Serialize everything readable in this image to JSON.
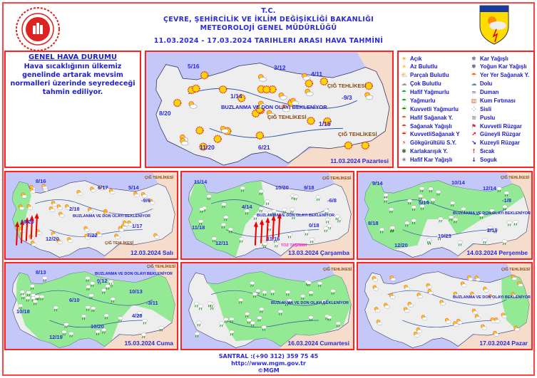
{
  "header": {
    "line1": "T.C.",
    "line2": "ÇEVRE, ŞEHİRCİLİK VE İKLİM DEĞİŞİKLİĞİ BAKANLIĞI",
    "line3": "METEOROLOJİ  GENEL  MÜDÜRLÜĞÜ",
    "date_range": "11.03.2024  -  17.03.2024    TARIHLERI  ARASI  HAVA  TAHMİNİ",
    "right_logo_text": "METEOROLOJİ"
  },
  "genel": {
    "title": "GENEL HAVA DURUMU",
    "text": "Hava sıcaklığının ülkemiz genelinde artarak mevsim normalleri üzerinde seyredeceği tahmin ediliyor."
  },
  "legend": [
    {
      "label": "Açık",
      "icon": "sun-icon"
    },
    {
      "label": "Kar Yağışlı",
      "icon": "snow-icon"
    },
    {
      "label": "Az Bulutlu",
      "icon": "few-clouds-icon"
    },
    {
      "label": "Yoğun Kar Yağışlı",
      "icon": "heavy-snow-icon"
    },
    {
      "label": "Parçalı Bulutlu",
      "icon": "partly-cloudy-icon"
    },
    {
      "label": "Yer Yer Sağanak Y.",
      "icon": "scattered-showers-icon"
    },
    {
      "label": "Çok Bulutlu",
      "icon": "cloudy-icon"
    },
    {
      "label": "Dolu",
      "icon": "hail-icon"
    },
    {
      "label": "Hafif Yağmurlu",
      "icon": "light-rain-icon"
    },
    {
      "label": "Duman",
      "icon": "smoke-icon"
    },
    {
      "label": "Yağmurlu",
      "icon": "rain-icon"
    },
    {
      "label": "Kum Fırtınası",
      "icon": "sandstorm-icon"
    },
    {
      "label": "Kuvvetli Yağmurlu",
      "icon": "heavy-rain-icon"
    },
    {
      "label": "Sisli",
      "icon": "fog-icon"
    },
    {
      "label": "Hafif Sağanak Y.",
      "icon": "light-showers-icon"
    },
    {
      "label": "Puslu",
      "icon": "haze-icon"
    },
    {
      "label": "Sağanak Yağışlı",
      "icon": "showers-icon"
    },
    {
      "label": "Kuvvetli Rüzgar",
      "icon": "strong-wind-icon"
    },
    {
      "label": "KuvvetliSağanak Y",
      "icon": "heavy-showers-icon"
    },
    {
      "label": "Güneyli Rüzgar",
      "icon": "south-wind-arrow-icon"
    },
    {
      "label": "Gökgürültülü S.Y.",
      "icon": "thunderstorm-icon"
    },
    {
      "label": "Kuzeyli Rüzgar",
      "icon": "north-wind-arrow-icon"
    },
    {
      "label": "Karlakarışık Y.",
      "icon": "sleet-icon"
    },
    {
      "label": "Sıcak",
      "icon": "hot-icon"
    },
    {
      "label": "Hafif Kar Yağışlı",
      "icon": "light-snow-icon"
    },
    {
      "label": "Soguk",
      "icon": "cold-icon"
    }
  ],
  "maps": [
    {
      "date": "11.03.2024 Pazartesi",
      "icon": "sun-icon",
      "temps": [
        "5/16",
        "3/12",
        "4/11",
        "1/14",
        "-9/3",
        "8/20",
        "1/15",
        "11/20",
        "6/21"
      ],
      "warnings": [
        "BUZLANMA VE DON OLAYI BEKLENİYOR",
        "ÇIĞ TEHLİKESİ",
        "ÇIĞ TEHLİKESİ",
        "ÇIĞ TEHLİKESİ"
      ]
    },
    {
      "date": "12.03.2024 Salı",
      "icon": "partly-cloudy-icon",
      "temps": [
        "8/16",
        "6/17",
        "5/14",
        "2/18",
        "-9/6",
        "10/20",
        "1/17",
        "12/20",
        "7/22"
      ],
      "warnings": [
        "BUZLANMA VE DON OLAYI BEKLENİYOR",
        "ÇIĞ TEHLİKESİ",
        "ÇIĞ TEHLİKESİ"
      ]
    },
    {
      "date": "13.03.2024 Çarşamba",
      "icon": "rain-icon",
      "temps": [
        "11/14",
        "10/20",
        "9/18",
        "4/14",
        "-6/8",
        "11/18",
        "0/18",
        "12/11",
        "11/16"
      ],
      "warnings": [
        "BUZLANMA VE DON OLAYI BEKLENİYOR",
        "ÇIĞ TEHLİKESİ",
        "TOZ TAŞINIMI"
      ]
    },
    {
      "date": "14.03.2024 Perşembe",
      "icon": "rain-icon",
      "temps": [
        "9/14",
        "10/14",
        "12/14",
        "5/14",
        "-1/8",
        "8/18",
        "10/23",
        "2/19",
        "12/20"
      ],
      "warnings": [
        "BUZLANMA VE DON OLAYI BEKLENİYOR",
        "ÇIĞ TEHLİKESİ"
      ]
    },
    {
      "date": "15.03.2024 Cuma",
      "icon": "rain-icon",
      "temps": [
        "8/13",
        "9/12",
        "10/13",
        "6/10",
        "-3/11",
        "10/18",
        "4/20",
        "10/20",
        "12/19"
      ],
      "warnings": [
        "BUZLANMA VE DON OLAYI BEKLENİYOR",
        "ÇIĞ TEHLİKESİ"
      ]
    },
    {
      "date": "16.03.2024 Cumartesi",
      "icon": "rain-icon",
      "temps": [],
      "warnings": [
        "BUZLANMA VE DON OLAYI BEKLENİYOR",
        "ÇIĞ TEHLİKESİ"
      ]
    },
    {
      "date": "17.03.2024 Pazar",
      "icon": "partly-cloudy-icon",
      "temps": [],
      "warnings": [
        "BUZLANMA VE DON OLAYI BEKLENİYOR",
        "ÇIĞ TEHLİKESİ"
      ]
    }
  ],
  "colors": {
    "sea": "#c4c8f8",
    "neighbor": "#f5dccb",
    "land": "#eeeeef",
    "rain_area": "#8ee88e",
    "text": "#2a2ae0",
    "border": "#ff2222"
  },
  "footer": {
    "phone": "SANTRAL :(+90 312) 359 75 45",
    "url": "http://www.mgm.gov.tr",
    "copy": "©MGM"
  }
}
